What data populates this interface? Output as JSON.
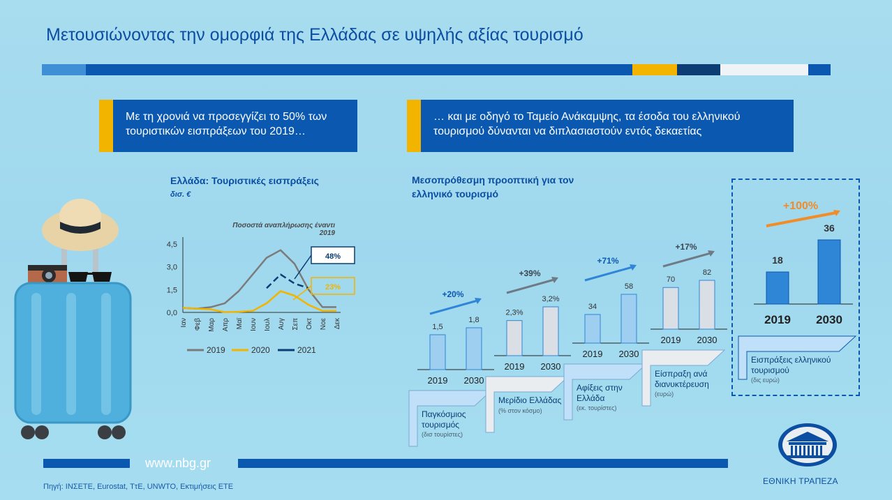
{
  "title": "Μετουσιώνοντας την ομορφιά της Ελλάδας σε υψηλής αξίας τουρισμό",
  "colors": {
    "accent_yellow": "#f3b400",
    "primary_blue": "#0a58b0",
    "dark_blue": "#0c3d73",
    "bar_light_blue": "#9fcff0",
    "bar_gray": "#d9dfe4"
  },
  "left_box": "Με τη χρονιά να προσεγγίζει το 50% των τουριστικών εισπράξεων του 2019…",
  "right_box": "… και με οδηγό το Ταμείο Ανάκαμψης, τα έσοδα του ελληνικού τουρισμού δύνανται να διπλασιαστούν εντός δεκαετίας",
  "chart_data": [
    {
      "type": "line",
      "title": "Ελλάδα: Τουριστικές εισπράξεις",
      "ylabel": "δισ. €",
      "categories": [
        "Ιαν",
        "Φεβ",
        "Μαρ",
        "Απρ",
        "Μαϊ",
        "Ιουν",
        "Ιουλ",
        "Αυγ",
        "Σεπ",
        "Οκτ",
        "Νοε",
        "Δεκ"
      ],
      "yticks": [
        "0,0",
        "1,5",
        "3,0",
        "4,5"
      ],
      "ylim": [
        0,
        4.5
      ],
      "series": [
        {
          "name": "2019",
          "color": "#7b7b7b",
          "values": [
            0.3,
            0.25,
            0.35,
            0.6,
            1.4,
            2.5,
            3.6,
            4.1,
            3.2,
            1.5,
            0.35,
            0.35
          ]
        },
        {
          "name": "2020",
          "color": "#f3b400",
          "values": [
            0.3,
            0.25,
            0.2,
            0.02,
            0.04,
            0.1,
            0.6,
            1.4,
            1.1,
            0.5,
            0.1,
            0.1
          ]
        },
        {
          "name": "2021",
          "color": "#0c3d73",
          "dashed_from": 6,
          "values": [
            null,
            null,
            null,
            null,
            null,
            null,
            1.6,
            2.5,
            1.9,
            1.6,
            null,
            null
          ]
        }
      ],
      "annotation": "Ποσοστά αναπλήρωσης έναντι 2019",
      "callouts": [
        {
          "label": "48%",
          "color": "#0c3d73"
        },
        {
          "label": "23%",
          "color": "#f3b400"
        }
      ]
    },
    {
      "type": "bar",
      "title": "Μεσοπρόθεσμη προοπτική για τον ελληνικό τουρισμό",
      "panels": [
        {
          "categories": [
            "2019",
            "2030"
          ],
          "values": [
            1.5,
            1.8
          ],
          "labels": [
            "1,5",
            "1,8"
          ],
          "change": "+20%",
          "arrow_color": "#2f86d6",
          "bar_color": "#9fcff0",
          "caption": "Παγκόσμιος τουρισμός",
          "unit": "(δισ τουρίστες)"
        },
        {
          "categories": [
            "2019",
            "2030"
          ],
          "values": [
            2.3,
            3.2
          ],
          "labels": [
            "2,3%",
            "3,2%"
          ],
          "change": "+39%",
          "arrow_color": "#6e7b86",
          "bar_color": "#d9dfe4",
          "caption": "Μερίδιο Ελλάδας",
          "unit": "(% στον κόσμο)"
        },
        {
          "categories": [
            "2019",
            "2030"
          ],
          "values": [
            34,
            58
          ],
          "labels": [
            "34",
            "58"
          ],
          "change": "+71%",
          "arrow_color": "#2f86d6",
          "bar_color": "#9fcff0",
          "caption": "Αφίξεις στην Ελλάδα",
          "unit": "(εκ. τουρίστες)"
        },
        {
          "categories": [
            "2019",
            "2030"
          ],
          "values": [
            70,
            82
          ],
          "labels": [
            "70",
            "82"
          ],
          "change": "+17%",
          "arrow_color": "#6e7b86",
          "bar_color": "#d9dfe4",
          "caption": "Είσπραξη ανά διανυκτέρευση",
          "unit": "(ευρώ)"
        },
        {
          "categories": [
            "2019",
            "2030"
          ],
          "values": [
            18,
            36
          ],
          "labels": [
            "18",
            "36"
          ],
          "change": "+100%",
          "arrow_color": "#f28c28",
          "bar_color": "#2f86d6",
          "caption": "Εισπράξεις ελληνικού τουρισμού",
          "unit": "(δις ευρώ)"
        }
      ]
    }
  ],
  "footer": {
    "url": "www.nbg.gr",
    "source": "Πηγή: ΙΝΣΕΤΕ, Eurostat, ΤτΕ, UNWTO, Εκτιμήσεις ΕΤΕ",
    "bank_name": "ΕΘΝΙΚΗ ΤΡΑΠΕΖΑ"
  }
}
